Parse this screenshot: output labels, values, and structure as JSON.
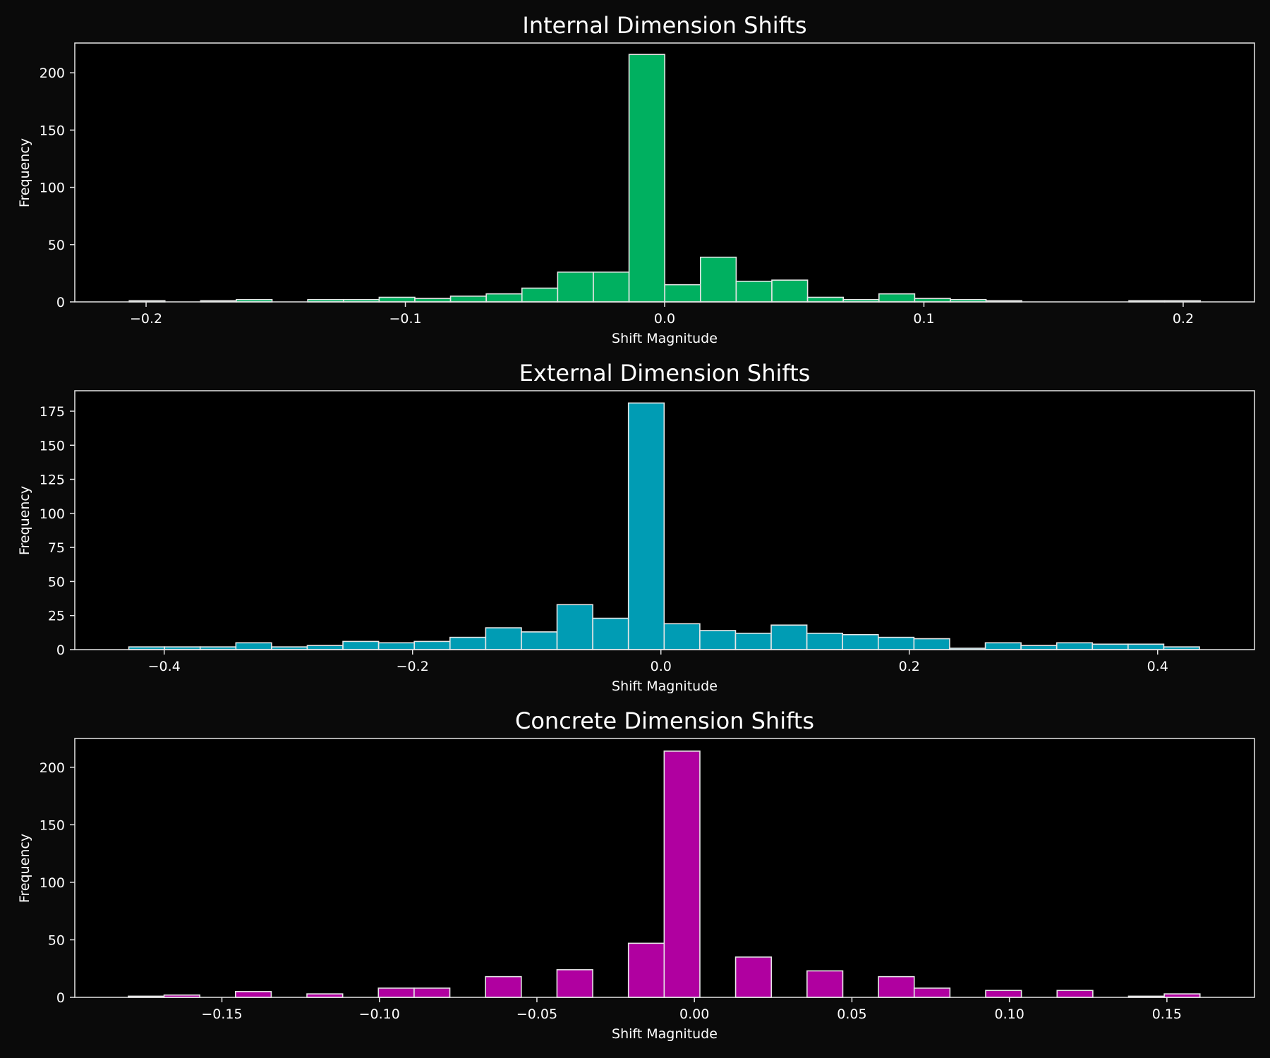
{
  "chart_data": [
    {
      "type": "bar",
      "title": "Internal Dimension Shifts",
      "xlabel": "Shift Magnitude",
      "ylabel": "Frequency",
      "color": "#00b060",
      "edge_color": "#e6e6e6",
      "background": "#000000",
      "xlim": [
        -0.2275,
        0.2275
      ],
      "ylim": [
        0,
        226
      ],
      "xticks": [
        -0.2,
        -0.1,
        0.0,
        0.1,
        0.2
      ],
      "xtick_labels": [
        "−0.2",
        "−0.1",
        "0.0",
        "0.1",
        "0.2"
      ],
      "yticks": [
        0,
        50,
        100,
        150,
        200
      ],
      "bin_start": -0.2065,
      "bin_width": 0.01377,
      "values": [
        1,
        0,
        1,
        2,
        0,
        2,
        2,
        4,
        3,
        5,
        7,
        12,
        26,
        26,
        216,
        15,
        39,
        18,
        19,
        4,
        2,
        7,
        3,
        2,
        1,
        0,
        0,
        0,
        1,
        1
      ]
    },
    {
      "type": "bar",
      "title": "External Dimension Shifts",
      "xlabel": "Shift Magnitude",
      "ylabel": "Frequency",
      "color": "#009cb4",
      "edge_color": "#e6e6e6",
      "background": "#000000",
      "xlim": [
        -0.472,
        0.478
      ],
      "ylim": [
        0,
        190
      ],
      "xticks": [
        -0.4,
        -0.2,
        0.0,
        0.2,
        0.4
      ],
      "xtick_labels": [
        "−0.4",
        "−0.2",
        "0.0",
        "0.2",
        "0.4"
      ],
      "yticks": [
        0,
        25,
        50,
        75,
        100,
        125,
        150,
        175
      ],
      "bin_start": -0.4285,
      "bin_width": 0.02874,
      "values": [
        2,
        2,
        2,
        5,
        2,
        3,
        6,
        5,
        6,
        9,
        16,
        13,
        33,
        23,
        181,
        19,
        14,
        12,
        18,
        12,
        11,
        9,
        8,
        1,
        5,
        3,
        5,
        4,
        4,
        2
      ]
    },
    {
      "type": "bar",
      "title": "Concrete Dimension Shifts",
      "xlabel": "Shift Magnitude",
      "ylabel": "Frequency",
      "color": "#b000a0",
      "edge_color": "#e6e6e6",
      "background": "#000000",
      "xlim": [
        -0.1967,
        0.1778
      ],
      "ylim": [
        0,
        225
      ],
      "xticks": [
        -0.15,
        -0.1,
        -0.05,
        0.0,
        0.05,
        0.1,
        0.15
      ],
      "xtick_labels": [
        "−0.15",
        "−0.10",
        "−0.05",
        "0.00",
        "0.05",
        "0.10",
        "0.15"
      ],
      "yticks": [
        0,
        50,
        100,
        150,
        200
      ],
      "bin_start": -0.1797,
      "bin_width": 0.01134,
      "values": [
        1,
        2,
        0,
        5,
        0,
        3,
        0,
        8,
        8,
        0,
        18,
        0,
        24,
        0,
        47,
        214,
        0,
        35,
        0,
        23,
        0,
        18,
        8,
        0,
        6,
        0,
        6,
        0,
        1,
        3
      ]
    }
  ]
}
